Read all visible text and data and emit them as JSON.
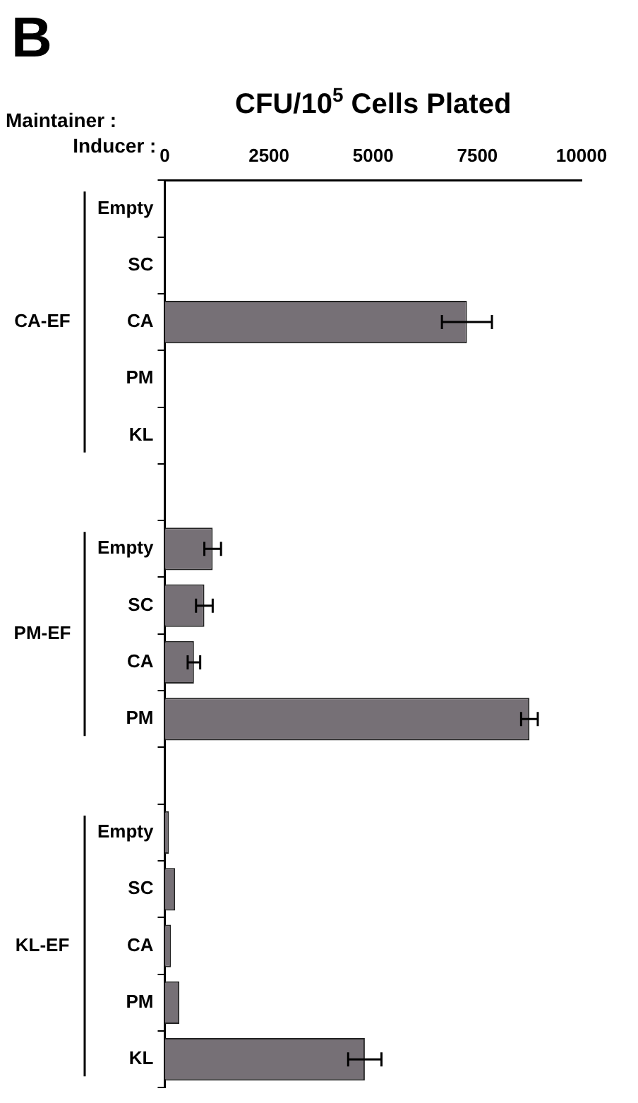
{
  "chart_data": {
    "type": "bar",
    "orientation": "horizontal",
    "xlabel": "CFU/10$^{5}$ Cells Plated",
    "categories": [
      "Empty",
      "SC",
      "CA",
      "PM",
      "KL",
      null,
      "Empty",
      "SC",
      "CA",
      "PM",
      null,
      "Empty",
      "SC",
      "CA",
      "PM",
      "KL"
    ],
    "values": [
      0,
      0,
      7250,
      0,
      0,
      null,
      1150,
      950,
      700,
      8750,
      null,
      100,
      250,
      150,
      350,
      4800
    ],
    "errors": [
      null,
      null,
      600,
      null,
      null,
      null,
      200,
      200,
      150,
      200,
      null,
      null,
      null,
      null,
      null,
      400
    ],
    "color": "#767076",
    "xlim": [
      0,
      10000
    ],
    "xticks": [
      0,
      2500,
      5000,
      7500,
      10000
    ],
    "grid": false,
    "legend": false,
    "annotations": [
      "B",
      "Inducer :",
      "Maintainer :",
      "CA-EF",
      "PM-EF",
      "KL-EF"
    ]
  }
}
